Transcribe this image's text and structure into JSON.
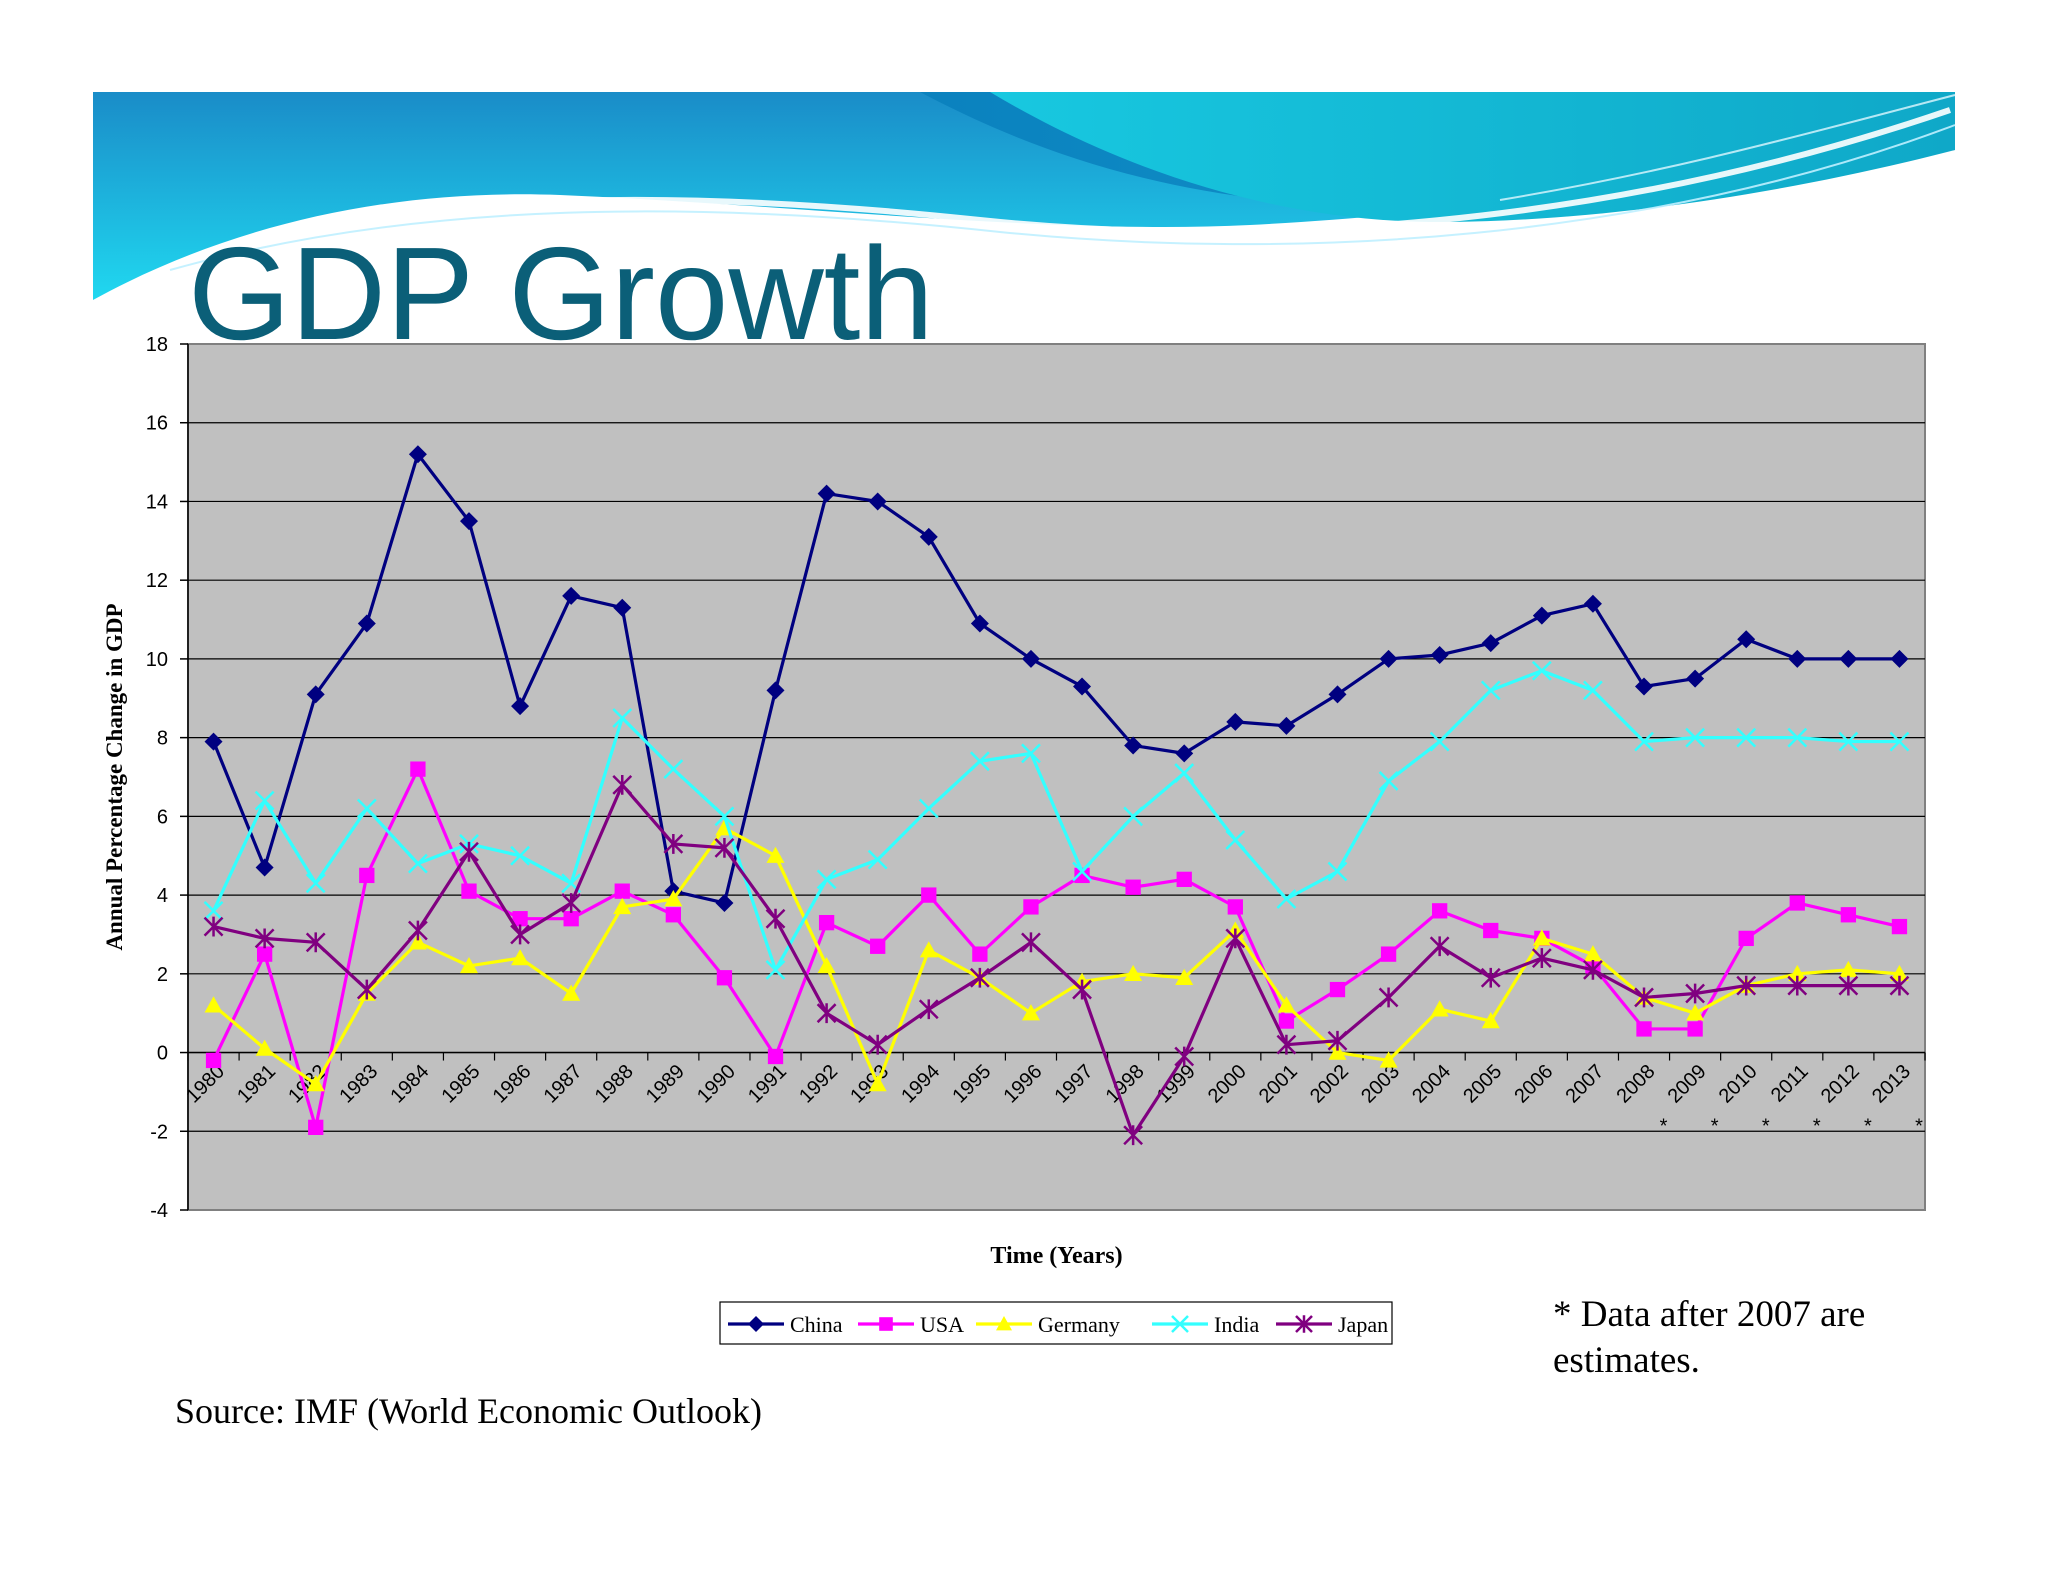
{
  "slide": {
    "title": "GDP Growth",
    "note": "* Data after 2007 are estimates.",
    "source": "Source: IMF (World Economic Outlook)"
  },
  "colors": {
    "plot_background": "#c0c0c0",
    "china": "#000080",
    "usa": "#ff00ff",
    "germany": "#ffff00",
    "india": "#33ffff",
    "japan": "#800080",
    "title": "#0b5f78"
  },
  "chart_data": {
    "type": "line",
    "title": "",
    "xlabel": "Time (Years)",
    "ylabel": "Annual Percentage Change in GDP",
    "ylim": [
      -4,
      18
    ],
    "yticks": [
      -4,
      -2,
      0,
      2,
      4,
      6,
      8,
      10,
      12,
      14,
      16,
      18
    ],
    "grid": true,
    "legend_position": "bottom",
    "categories": [
      "1980",
      "1981",
      "1982",
      "1983",
      "1984",
      "1985",
      "1986",
      "1987",
      "1988",
      "1989",
      "1990",
      "1991",
      "1992",
      "1993",
      "1994",
      "1995",
      "1996",
      "1997",
      "1998",
      "1999",
      "2000",
      "2001",
      "2002",
      "2003",
      "2004",
      "2005",
      "2006",
      "2007",
      "2008 *",
      "2009 *",
      "2010 *",
      "2011 *",
      "2012 *",
      "2013 *"
    ],
    "series": [
      {
        "name": "China",
        "marker": "diamond",
        "values": [
          7.9,
          4.7,
          9.1,
          10.9,
          15.2,
          13.5,
          8.8,
          11.6,
          11.3,
          4.1,
          3.8,
          9.2,
          14.2,
          14.0,
          13.1,
          10.9,
          10.0,
          9.3,
          7.8,
          7.6,
          8.4,
          8.3,
          9.1,
          10.0,
          10.1,
          10.4,
          11.1,
          11.4,
          9.3,
          9.5,
          10.5,
          10.0,
          10.0,
          10.0
        ]
      },
      {
        "name": "USA",
        "marker": "square",
        "values": [
          -0.2,
          2.5,
          -1.9,
          4.5,
          7.2,
          4.1,
          3.4,
          3.4,
          4.1,
          3.5,
          1.9,
          -0.1,
          3.3,
          2.7,
          4.0,
          2.5,
          3.7,
          4.5,
          4.2,
          4.4,
          3.7,
          0.8,
          1.6,
          2.5,
          3.6,
          3.1,
          2.9,
          2.2,
          0.6,
          0.6,
          2.9,
          3.8,
          3.5,
          3.2
        ]
      },
      {
        "name": "Germany",
        "marker": "triangle",
        "values": [
          1.2,
          0.1,
          -0.8,
          1.5,
          2.8,
          2.2,
          2.4,
          1.5,
          3.7,
          3.9,
          5.7,
          5.0,
          2.2,
          -0.8,
          2.6,
          1.9,
          1.0,
          1.8,
          2.0,
          1.9,
          3.1,
          1.2,
          0.0,
          -0.2,
          1.1,
          0.8,
          2.9,
          2.5,
          1.4,
          1.0,
          1.7,
          2.0,
          2.1,
          2.0
        ]
      },
      {
        "name": "India",
        "marker": "x",
        "values": [
          3.6,
          6.4,
          4.3,
          6.2,
          4.8,
          5.3,
          5.0,
          4.3,
          8.5,
          7.2,
          6.0,
          2.1,
          4.4,
          4.9,
          6.2,
          7.4,
          7.6,
          4.6,
          6.0,
          7.1,
          5.4,
          3.9,
          4.6,
          6.9,
          7.9,
          9.2,
          9.7,
          9.2,
          7.9,
          8.0,
          8.0,
          8.0,
          7.9,
          7.9
        ]
      },
      {
        "name": "Japan",
        "marker": "star",
        "values": [
          3.2,
          2.9,
          2.8,
          1.6,
          3.1,
          5.1,
          3.0,
          3.8,
          6.8,
          5.3,
          5.2,
          3.4,
          1.0,
          0.2,
          1.1,
          1.9,
          2.8,
          1.6,
          -2.1,
          -0.1,
          2.9,
          0.2,
          0.3,
          1.4,
          2.7,
          1.9,
          2.4,
          2.1,
          1.4,
          1.5,
          1.7,
          1.7,
          1.7,
          1.7
        ]
      }
    ]
  }
}
